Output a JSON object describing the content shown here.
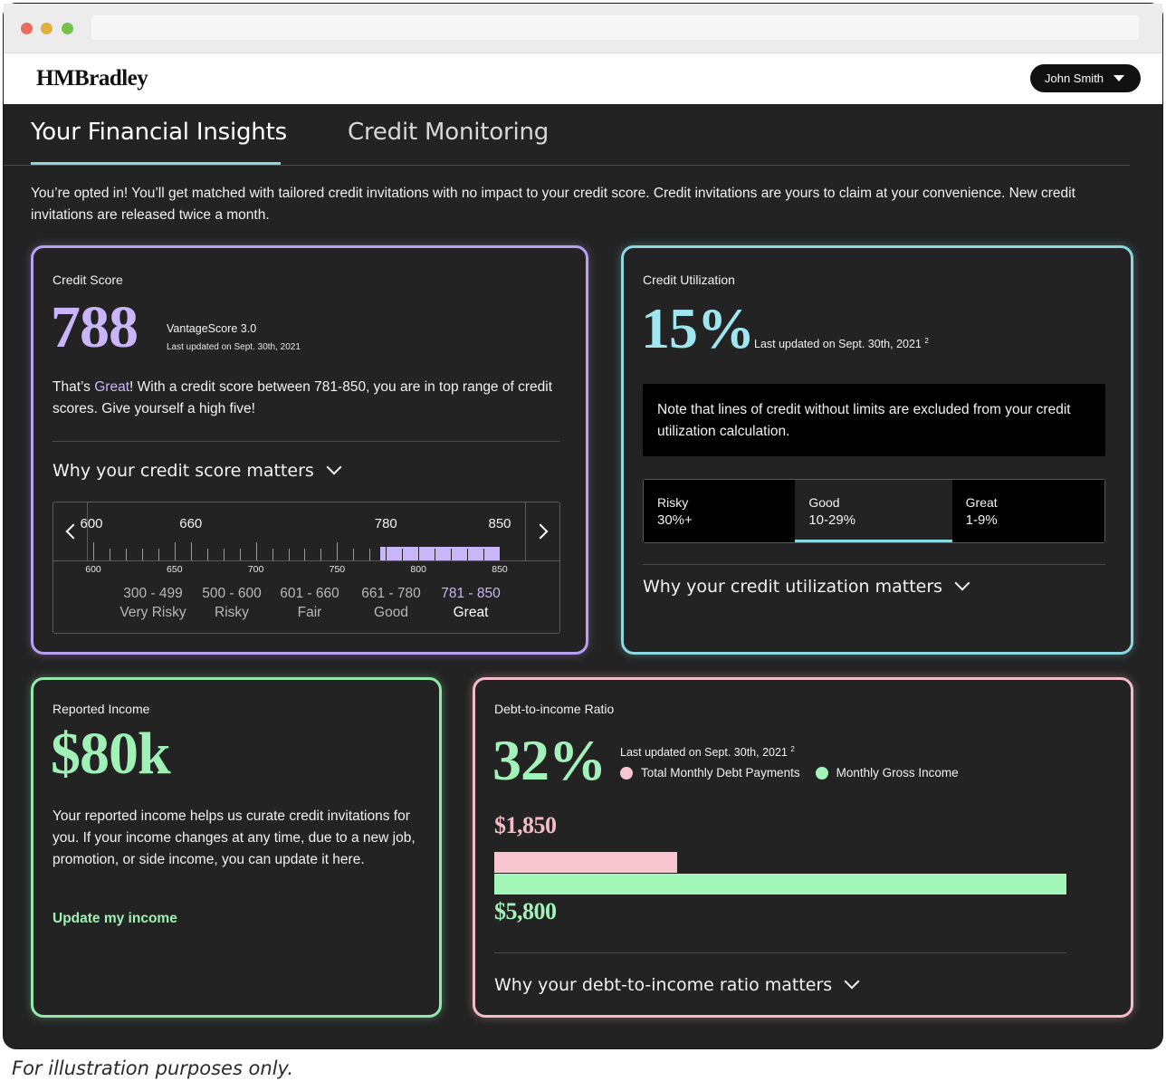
{
  "brand": {
    "logo": "HMBradley"
  },
  "user_menu": {
    "label": "John Smith",
    "icon": "caret-down-icon"
  },
  "tabs": [
    {
      "label": "Your Financial Insights",
      "active": true
    },
    {
      "label": "Credit Monitoring",
      "active": false
    }
  ],
  "intro": "You’re opted in! You’ll get matched with tailored credit invitations with no impact to your credit score. Credit invitations are yours to claim at your convenience. New credit invitations are released twice a month.",
  "credit_score": {
    "title": "Credit Score",
    "score": "788",
    "model": "VantageScore 3.0",
    "updated": "Last updated on Sept. 30th, 2021",
    "desc_pre": "That’s ",
    "desc_rating": "Great",
    "desc_post": "! With a credit score between 781-850, you are in top range of credit scores. Give yourself a high five!",
    "why": "Why your credit score matters",
    "scale_top_labels": [
      {
        "label": "600",
        "value": 600
      },
      {
        "label": "660",
        "value": 660
      },
      {
        "label": "780",
        "value": 780
      },
      {
        "label": "850",
        "value": 850
      }
    ],
    "scale_bottom_labels": [
      {
        "label": "600",
        "value": 600
      },
      {
        "label": "650",
        "value": 650
      },
      {
        "label": "700",
        "value": 700
      },
      {
        "label": "750",
        "value": 750
      },
      {
        "label": "800",
        "value": 800
      },
      {
        "label": "850",
        "value": 850
      }
    ],
    "scale_min": 600,
    "scale_max": 850,
    "great_range": [
      781,
      850
    ],
    "ranges": [
      {
        "range": "300 - 499",
        "label": "Very Risky",
        "center": 637
      },
      {
        "range": "500 - 600",
        "label": "Risky",
        "center": 685
      },
      {
        "range": "601 - 660",
        "label": "Fair",
        "center": 733
      },
      {
        "range": "661 - 780",
        "label": "Good",
        "center": 783
      },
      {
        "range": "781 - 850",
        "label": "Great",
        "center": 832,
        "highlight": true
      }
    ]
  },
  "credit_utilization": {
    "title": "Credit Utilization",
    "percent": "15%",
    "updated": "Last updated on Sept. 30th, 2021",
    "footnote_mark": "2",
    "note": "Note that lines of credit without limits are excluded from your credit utilization calculation.",
    "segments": [
      {
        "name": "Risky",
        "value": "30%+",
        "active": false
      },
      {
        "name": "Good",
        "value": "10-29%",
        "active": true
      },
      {
        "name": "Great",
        "value": "1-9%",
        "active": false
      }
    ],
    "why": "Why your credit utilization matters"
  },
  "reported_income": {
    "title": "Reported Income",
    "amount": "$80k",
    "desc": "Your reported income helps us curate credit invitations for you. If your income changes at any time, due to a new job, promotion, or side income, you can update it here.",
    "link": "Update my income"
  },
  "dti": {
    "title": "Debt-to-income Ratio",
    "percent": "32%",
    "updated": "Last updated on Sept. 30th, 2021",
    "footnote_mark": "2",
    "legend": [
      {
        "label": "Total Monthly Debt Payments",
        "color": "#f7c6d1"
      },
      {
        "label": "Monthly Gross Income",
        "color": "#a2f2b9"
      }
    ],
    "debt_label": "$1,850",
    "debt_value": 1850,
    "income_label": "$5,800",
    "income_value": 5800,
    "why": "Why your debt-to-income ratio matters"
  },
  "footnote": "For illustration purposes only.",
  "colors": {
    "score_purple": "#c9b5fa",
    "util_cyan": "#8ad8e0",
    "income_green": "#9ef2b5",
    "debt_pink": "#f4bcc8"
  }
}
